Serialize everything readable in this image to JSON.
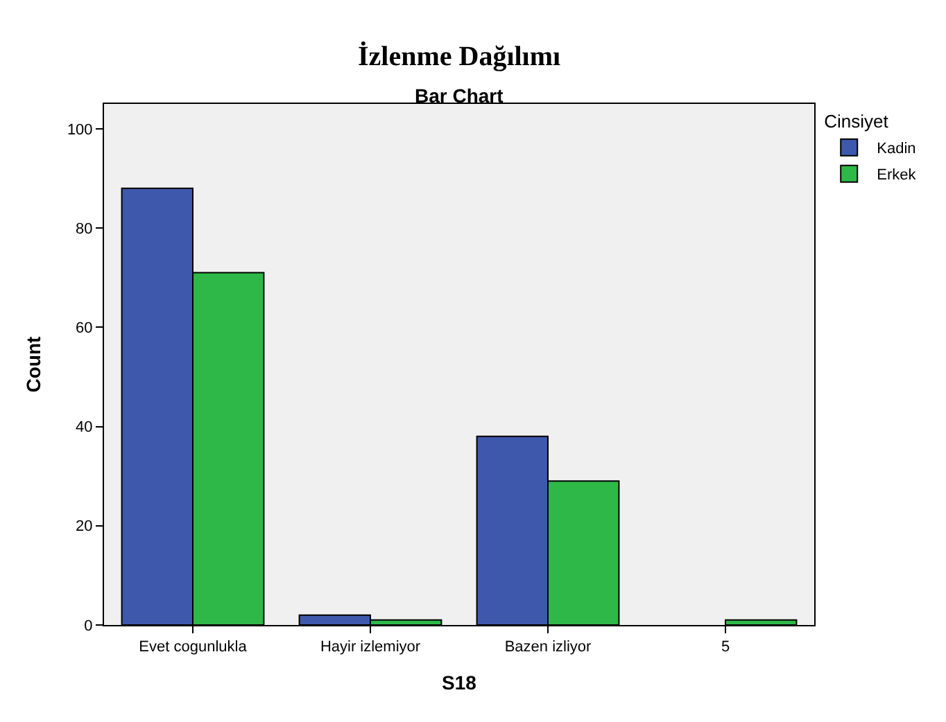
{
  "chart_data": {
    "type": "bar",
    "title": "İzlenme Dağılımı",
    "subtitle": "Bar Chart",
    "xlabel": "S18",
    "ylabel": "Count",
    "legend_title": "Cinsiyet",
    "categories": [
      "Evet cogunlukla",
      "Hayir izlemiyor",
      "Bazen izliyor",
      "5"
    ],
    "series": [
      {
        "name": "Kadin",
        "color": "#3e58ac",
        "values": [
          88,
          2,
          38,
          null
        ]
      },
      {
        "name": "Erkek",
        "color": "#2eb848",
        "values": [
          71,
          1,
          29,
          1
        ]
      }
    ],
    "ylim": [
      0,
      105
    ],
    "yticks": [
      0,
      20,
      40,
      60,
      80,
      100
    ],
    "grid": false,
    "legend": "top right"
  }
}
